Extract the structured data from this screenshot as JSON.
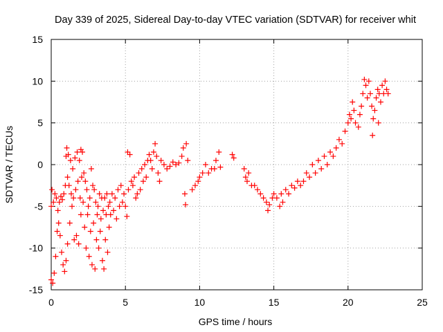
{
  "chart_data": {
    "type": "scatter",
    "title": "Day 339 of 2025, Sidereal Day-to-day VTEC variation (SDTVAR) for receiver whit",
    "xlabel": "GPS time / hours",
    "ylabel": "SDTVAR / TECUs",
    "xlim": [
      0,
      25
    ],
    "ylim": [
      -15,
      15
    ],
    "xticks": [
      0,
      5,
      10,
      15,
      20,
      25
    ],
    "yticks": [
      -15,
      -10,
      -5,
      0,
      5,
      10,
      15
    ],
    "xtick_labels": [
      "0",
      "5",
      "10",
      "15",
      "20",
      "25"
    ],
    "ytick_labels": [
      "-15",
      "-10",
      "-5",
      "0",
      "5",
      "10",
      "15"
    ],
    "grid": true,
    "marker": "+",
    "series_color": "#ff0000",
    "series": [
      {
        "name": "SDTVAR",
        "points": [
          [
            0.0,
            -5.0
          ],
          [
            0.0,
            -13.8
          ],
          [
            0.05,
            -3.0
          ],
          [
            0.1,
            -14.2
          ],
          [
            0.15,
            -4.5
          ],
          [
            0.2,
            -13.0
          ],
          [
            0.25,
            -3.5
          ],
          [
            0.3,
            -11.0
          ],
          [
            0.35,
            -4.0
          ],
          [
            0.4,
            -8.0
          ],
          [
            0.45,
            -5.5
          ],
          [
            0.5,
            -7.0
          ],
          [
            0.55,
            -4.5
          ],
          [
            0.6,
            -8.5
          ],
          [
            0.65,
            -3.8
          ],
          [
            0.7,
            -10.5
          ],
          [
            0.75,
            -4.2
          ],
          [
            0.8,
            -12.0
          ],
          [
            0.85,
            -3.5
          ],
          [
            0.9,
            -12.8
          ],
          [
            0.95,
            -2.5
          ],
          [
            1.0,
            1.0
          ],
          [
            1.0,
            -11.5
          ],
          [
            1.05,
            2.0
          ],
          [
            1.1,
            -1.5
          ],
          [
            1.1,
            -9.5
          ],
          [
            1.15,
            1.2
          ],
          [
            1.2,
            -2.5
          ],
          [
            1.25,
            -7.0
          ],
          [
            1.3,
            0.5
          ],
          [
            1.35,
            -3.5
          ],
          [
            1.4,
            -5.0
          ],
          [
            1.45,
            -0.5
          ],
          [
            1.5,
            -4.0
          ],
          [
            1.55,
            -9.0
          ],
          [
            1.6,
            0.8
          ],
          [
            1.65,
            -3.0
          ],
          [
            1.7,
            -8.5
          ],
          [
            1.75,
            1.5
          ],
          [
            1.8,
            -2.0
          ],
          [
            1.85,
            -9.5
          ],
          [
            1.9,
            0.5
          ],
          [
            1.95,
            -4.0
          ],
          [
            2.0,
            1.8
          ],
          [
            2.0,
            -6.0
          ],
          [
            2.05,
            -1.5
          ],
          [
            2.1,
            1.5
          ],
          [
            2.15,
            -4.5
          ],
          [
            2.2,
            -1.0
          ],
          [
            2.25,
            -7.5
          ],
          [
            2.3,
            -2.0
          ],
          [
            2.35,
            -10.0
          ],
          [
            2.4,
            -3.0
          ],
          [
            2.45,
            -6.0
          ],
          [
            2.5,
            -5.0
          ],
          [
            2.55,
            -11.0
          ],
          [
            2.6,
            -4.0
          ],
          [
            2.65,
            -8.0
          ],
          [
            2.7,
            -0.5
          ],
          [
            2.75,
            -12.0
          ],
          [
            2.8,
            -2.5
          ],
          [
            2.85,
            -7.0
          ],
          [
            2.9,
            -3.0
          ],
          [
            2.95,
            -12.5
          ],
          [
            3.0,
            -4.5
          ],
          [
            3.05,
            -9.0
          ],
          [
            3.1,
            -6.0
          ],
          [
            3.15,
            -5.0
          ],
          [
            3.2,
            -10.0
          ],
          [
            3.25,
            -3.5
          ],
          [
            3.3,
            -8.0
          ],
          [
            3.35,
            -6.5
          ],
          [
            3.4,
            -4.0
          ],
          [
            3.45,
            -11.5
          ],
          [
            3.5,
            -5.5
          ],
          [
            3.55,
            -12.5
          ],
          [
            3.6,
            -4.0
          ],
          [
            3.65,
            -9.0
          ],
          [
            3.7,
            -6.0
          ],
          [
            3.75,
            -3.5
          ],
          [
            3.8,
            -10.5
          ],
          [
            3.85,
            -5.0
          ],
          [
            3.9,
            -7.5
          ],
          [
            3.95,
            -4.5
          ],
          [
            4.0,
            -6.0
          ],
          [
            4.1,
            -3.5
          ],
          [
            4.2,
            -5.5
          ],
          [
            4.3,
            -4.0
          ],
          [
            4.4,
            -6.5
          ],
          [
            4.5,
            -3.0
          ],
          [
            4.6,
            -5.0
          ],
          [
            4.7,
            -2.5
          ],
          [
            4.8,
            -4.5
          ],
          [
            4.9,
            -3.5
          ],
          [
            5.0,
            -5.0
          ],
          [
            5.1,
            -6.2
          ],
          [
            5.15,
            1.5
          ],
          [
            5.2,
            -3.0
          ],
          [
            5.3,
            1.2
          ],
          [
            5.4,
            -2.0
          ],
          [
            5.5,
            -2.5
          ],
          [
            5.6,
            -1.5
          ],
          [
            5.7,
            -4.0
          ],
          [
            5.8,
            -3.5
          ],
          [
            5.9,
            -1.0
          ],
          [
            6.0,
            -3.0
          ],
          [
            6.1,
            -0.5
          ],
          [
            6.2,
            -2.0
          ],
          [
            6.3,
            0.0
          ],
          [
            6.4,
            -1.5
          ],
          [
            6.5,
            0.5
          ],
          [
            6.6,
            1.2
          ],
          [
            6.7,
            0.5
          ],
          [
            6.8,
            -0.5
          ],
          [
            6.9,
            1.5
          ],
          [
            7.0,
            2.5
          ],
          [
            7.1,
            1.0
          ],
          [
            7.2,
            -1.0
          ],
          [
            7.3,
            -2.0
          ],
          [
            7.4,
            0.5
          ],
          [
            7.6,
            0.0
          ],
          [
            7.8,
            -0.5
          ],
          [
            8.0,
            -0.2
          ],
          [
            8.2,
            0.3
          ],
          [
            8.4,
            0.0
          ],
          [
            8.6,
            0.2
          ],
          [
            8.8,
            1.0
          ],
          [
            8.9,
            2.0
          ],
          [
            9.0,
            -3.5
          ],
          [
            9.05,
            -4.8
          ],
          [
            9.1,
            2.5
          ],
          [
            9.2,
            0.5
          ],
          [
            9.5,
            -3.0
          ],
          [
            9.7,
            -2.5
          ],
          [
            9.9,
            -2.0
          ],
          [
            10.0,
            -1.5
          ],
          [
            10.2,
            -1.0
          ],
          [
            10.4,
            0.0
          ],
          [
            10.6,
            -1.0
          ],
          [
            10.8,
            -0.5
          ],
          [
            11.0,
            -0.5
          ],
          [
            11.1,
            0.5
          ],
          [
            11.3,
            1.5
          ],
          [
            11.4,
            -0.3
          ],
          [
            12.2,
            1.2
          ],
          [
            12.3,
            0.8
          ],
          [
            13.0,
            -0.5
          ],
          [
            13.1,
            -1.5
          ],
          [
            13.2,
            -2.0
          ],
          [
            13.3,
            -1.0
          ],
          [
            13.5,
            -2.5
          ],
          [
            13.7,
            -2.5
          ],
          [
            13.9,
            -3.0
          ],
          [
            14.1,
            -3.5
          ],
          [
            14.3,
            -4.0
          ],
          [
            14.5,
            -4.5
          ],
          [
            14.6,
            -5.5
          ],
          [
            14.7,
            -4.8
          ],
          [
            14.9,
            -4.0
          ],
          [
            15.0,
            -3.5
          ],
          [
            15.2,
            -4.0
          ],
          [
            15.4,
            -5.0
          ],
          [
            15.5,
            -3.5
          ],
          [
            15.6,
            -4.5
          ],
          [
            15.8,
            -3.0
          ],
          [
            16.0,
            -3.5
          ],
          [
            16.2,
            -2.5
          ],
          [
            16.4,
            -2.8
          ],
          [
            16.6,
            -2.0
          ],
          [
            16.8,
            -2.5
          ],
          [
            17.0,
            -2.0
          ],
          [
            17.2,
            -1.0
          ],
          [
            17.4,
            -1.5
          ],
          [
            17.6,
            0.0
          ],
          [
            17.8,
            -1.0
          ],
          [
            18.0,
            0.5
          ],
          [
            18.2,
            -0.5
          ],
          [
            18.4,
            1.0
          ],
          [
            18.6,
            0.0
          ],
          [
            18.8,
            1.5
          ],
          [
            19.0,
            1.0
          ],
          [
            19.2,
            2.0
          ],
          [
            19.4,
            3.0
          ],
          [
            19.6,
            2.5
          ],
          [
            19.8,
            4.0
          ],
          [
            20.0,
            5.0
          ],
          [
            20.1,
            6.0
          ],
          [
            20.2,
            5.5
          ],
          [
            20.3,
            7.5
          ],
          [
            20.4,
            6.5
          ],
          [
            20.5,
            5.0
          ],
          [
            20.7,
            4.5
          ],
          [
            20.8,
            6.0
          ],
          [
            20.9,
            7.0
          ],
          [
            21.0,
            8.5
          ],
          [
            21.1,
            10.2
          ],
          [
            21.2,
            9.5
          ],
          [
            21.3,
            8.0
          ],
          [
            21.4,
            10.0
          ],
          [
            21.5,
            8.5
          ],
          [
            21.6,
            7.0
          ],
          [
            21.65,
            3.5
          ],
          [
            21.7,
            5.5
          ],
          [
            21.8,
            6.5
          ],
          [
            21.9,
            8.0
          ],
          [
            22.0,
            9.0
          ],
          [
            22.05,
            5.0
          ],
          [
            22.1,
            8.5
          ],
          [
            22.2,
            7.5
          ],
          [
            22.3,
            9.5
          ],
          [
            22.4,
            8.5
          ],
          [
            22.5,
            10.0
          ],
          [
            22.6,
            9.0
          ],
          [
            22.7,
            8.5
          ]
        ]
      }
    ]
  }
}
